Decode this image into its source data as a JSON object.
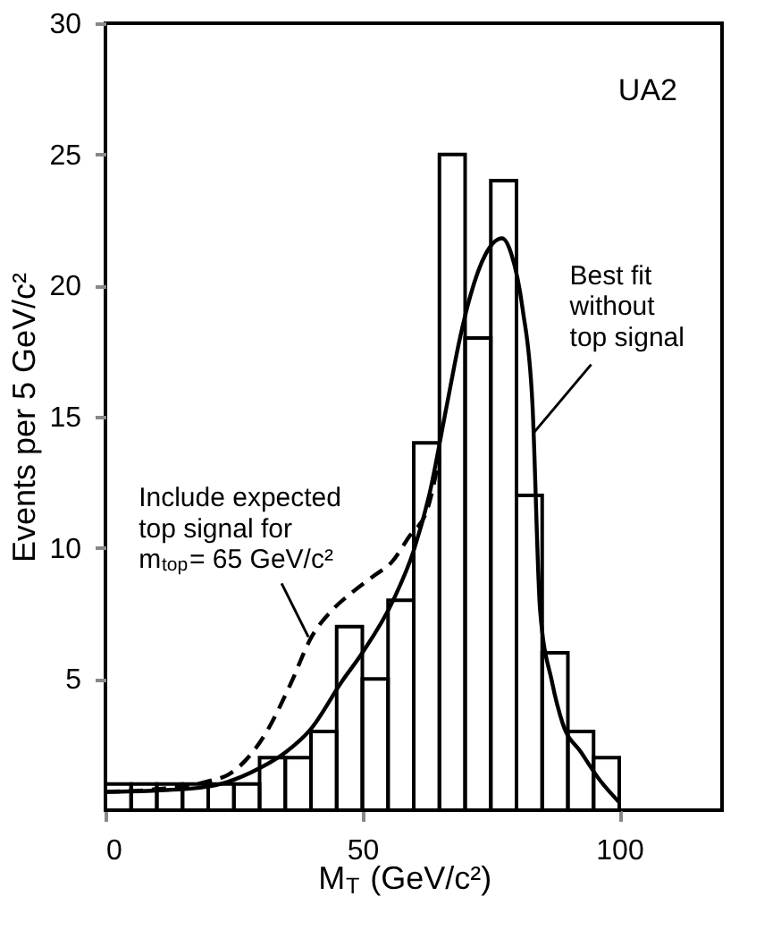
{
  "chart_data": {
    "type": "histogram",
    "xlabel": "M$_{T}$ (GeV/c²)",
    "ylabel": "Events per 5 GeV/c²",
    "xlim": [
      0,
      120
    ],
    "xticks": [
      0,
      50,
      100
    ],
    "ylim": [
      0,
      30
    ],
    "yticks": [
      5,
      10,
      15,
      20,
      25,
      30
    ],
    "grid": false,
    "series": [
      {
        "color": "#000000",
        "bins": [
          0,
          5,
          10,
          15,
          20,
          25,
          30,
          35,
          40,
          45,
          50,
          55,
          60,
          65,
          70,
          75,
          80,
          85,
          90,
          95,
          100
        ],
        "values": [
          1,
          1,
          1,
          1,
          1,
          1,
          2,
          2,
          3,
          7,
          5,
          8,
          14,
          25,
          18,
          24,
          12,
          6,
          3,
          2
        ]
      },
      {
        "type": "line",
        "color": "#000000",
        "line_style": "solid",
        "x": [
          0,
          10,
          20,
          30,
          35,
          40,
          46,
          50,
          56,
          60,
          63,
          66.5,
          69,
          71,
          74,
          77.2,
          79,
          81.2,
          83.1,
          84.6,
          86.9,
          89,
          92.6,
          96,
          100
        ],
        "values": [
          0.7,
          0.75,
          0.9,
          1.6,
          2.2,
          3.1,
          4.9,
          6.0,
          8.0,
          9.9,
          12,
          15.5,
          18,
          19.6,
          21.2,
          21.8,
          21.2,
          19.1,
          15.5,
          7.6,
          4.9,
          3.3,
          2.2,
          1.2,
          0.3
        ]
      },
      {
        "type": "line",
        "color": "#000000",
        "line_style": "dashed",
        "x": [
          0,
          10,
          20,
          24.3,
          31.1,
          36,
          40.1,
          44,
          48,
          52,
          55.9,
          59,
          62.7,
          65
        ],
        "values": [
          0.7,
          0.8,
          1.1,
          1.4,
          2.9,
          4.8,
          6.6,
          7.6,
          8.3,
          8.9,
          9.5,
          10.4,
          11.5,
          13.5
        ]
      }
    ],
    "annotations": [
      "UA2",
      {
        "text": "Best fit\nwithout\ntop signal",
        "x": 83.4,
        "y": 14.4
      },
      {
        "text": "Include expected\ntop signal for\nm$_{top}$= 65 GeV/c²",
        "x": 39.5,
        "y": 6.6
      }
    ]
  }
}
